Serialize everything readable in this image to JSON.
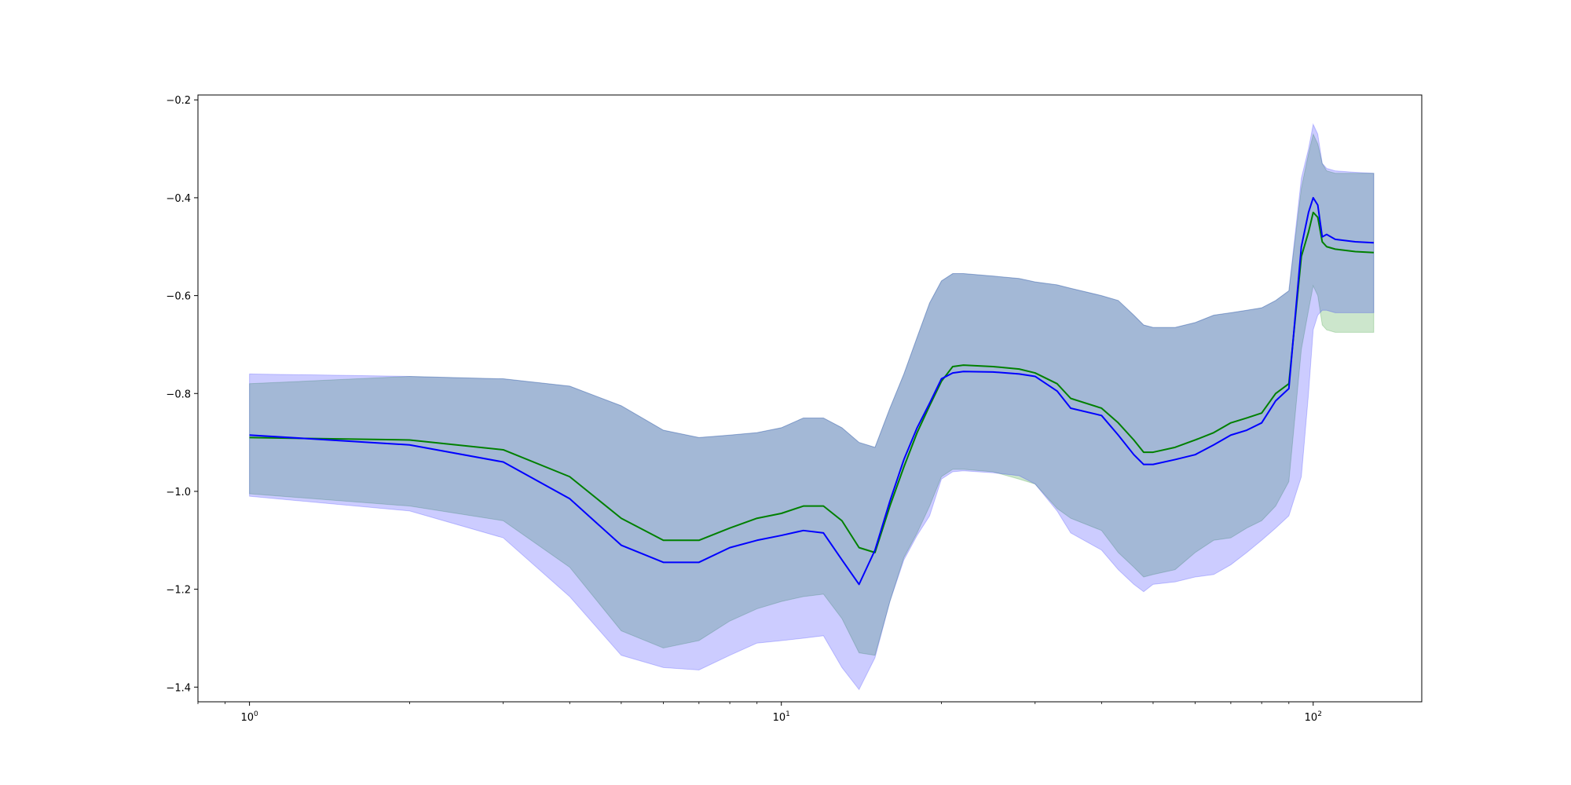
{
  "chart_data": {
    "type": "line",
    "title": "",
    "xlabel": "",
    "ylabel": "",
    "xscale": "log",
    "xlim": [
      0.8,
      160
    ],
    "ylim": [
      -1.43,
      -0.19
    ],
    "grid": false,
    "legend": "none",
    "x_ticks": [
      {
        "value": 1,
        "base": "10",
        "exp": "0"
      },
      {
        "value": 10,
        "base": "10",
        "exp": "1"
      },
      {
        "value": 100,
        "base": "10",
        "exp": "2"
      }
    ],
    "y_ticks": [
      {
        "value": -0.2,
        "label": "−0.2"
      },
      {
        "value": -0.4,
        "label": "−0.4"
      },
      {
        "value": -0.6,
        "label": "−0.6"
      },
      {
        "value": -0.8,
        "label": "−0.8"
      },
      {
        "value": -1.0,
        "label": "−1.0"
      },
      {
        "value": -1.2,
        "label": "−1.2"
      },
      {
        "value": -1.4,
        "label": "−1.4"
      }
    ],
    "series": [
      {
        "color": "#008000",
        "band_color": "#008000",
        "band_opacity": 0.2,
        "x": [
          1,
          2,
          3,
          4,
          5,
          6,
          7,
          8,
          9,
          10,
          11,
          12,
          13,
          14,
          15,
          16,
          17,
          18,
          19,
          20,
          21,
          22,
          25,
          28,
          30,
          33,
          35,
          40,
          43,
          46,
          48,
          50,
          55,
          60,
          65,
          70,
          75,
          80,
          85,
          90,
          95,
          98,
          100,
          102,
          104,
          106,
          110,
          120,
          130
        ],
        "mean": [
          -0.89,
          -0.895,
          -0.915,
          -0.97,
          -1.055,
          -1.1,
          -1.1,
          -1.075,
          -1.055,
          -1.045,
          -1.03,
          -1.03,
          -1.06,
          -1.115,
          -1.125,
          -1.03,
          -0.95,
          -0.88,
          -0.825,
          -0.775,
          -0.745,
          -0.742,
          -0.745,
          -0.75,
          -0.758,
          -0.78,
          -0.81,
          -0.83,
          -0.86,
          -0.895,
          -0.92,
          -0.92,
          -0.91,
          -0.895,
          -0.88,
          -0.86,
          -0.85,
          -0.84,
          -0.8,
          -0.78,
          -0.52,
          -0.47,
          -0.43,
          -0.44,
          -0.49,
          -0.5,
          -0.505,
          -0.51,
          -0.512
        ],
        "upper": [
          -0.78,
          -0.765,
          -0.77,
          -0.785,
          -0.825,
          -0.875,
          -0.89,
          -0.885,
          -0.88,
          -0.87,
          -0.85,
          -0.85,
          -0.87,
          -0.9,
          -0.91,
          -0.83,
          -0.76,
          -0.685,
          -0.615,
          -0.57,
          -0.555,
          -0.555,
          -0.56,
          -0.565,
          -0.572,
          -0.578,
          -0.585,
          -0.6,
          -0.61,
          -0.64,
          -0.66,
          -0.665,
          -0.665,
          -0.655,
          -0.64,
          -0.635,
          -0.63,
          -0.625,
          -0.61,
          -0.59,
          -0.38,
          -0.31,
          -0.27,
          -0.29,
          -0.33,
          -0.345,
          -0.35,
          -0.35,
          -0.35
        ],
        "lower": [
          -1.005,
          -1.03,
          -1.06,
          -1.155,
          -1.285,
          -1.32,
          -1.305,
          -1.265,
          -1.24,
          -1.225,
          -1.215,
          -1.21,
          -1.26,
          -1.33,
          -1.335,
          -1.225,
          -1.135,
          -1.085,
          -1.03,
          -0.97,
          -0.955,
          -0.955,
          -0.96,
          -0.975,
          -0.985,
          -1.035,
          -1.055,
          -1.08,
          -1.125,
          -1.155,
          -1.175,
          -1.17,
          -1.16,
          -1.125,
          -1.1,
          -1.095,
          -1.075,
          -1.06,
          -1.03,
          -0.98,
          -0.71,
          -0.63,
          -0.58,
          -0.6,
          -0.66,
          -0.67,
          -0.675,
          -0.675,
          -0.675
        ]
      },
      {
        "color": "#0000ff",
        "band_color": "#0000ff",
        "band_opacity": 0.2,
        "x": [
          1,
          2,
          3,
          4,
          5,
          6,
          7,
          8,
          9,
          10,
          11,
          12,
          13,
          14,
          15,
          16,
          17,
          18,
          19,
          20,
          21,
          22,
          25,
          28,
          30,
          33,
          35,
          40,
          43,
          46,
          48,
          50,
          55,
          60,
          65,
          70,
          75,
          80,
          85,
          90,
          95,
          98,
          100,
          102,
          104,
          106,
          110,
          120,
          130
        ],
        "mean": [
          -0.885,
          -0.905,
          -0.94,
          -1.015,
          -1.11,
          -1.145,
          -1.145,
          -1.115,
          -1.1,
          -1.09,
          -1.08,
          -1.085,
          -1.14,
          -1.19,
          -1.12,
          -1.02,
          -0.935,
          -0.87,
          -0.82,
          -0.77,
          -0.758,
          -0.755,
          -0.756,
          -0.76,
          -0.765,
          -0.795,
          -0.83,
          -0.845,
          -0.885,
          -0.925,
          -0.945,
          -0.945,
          -0.935,
          -0.925,
          -0.905,
          -0.885,
          -0.875,
          -0.86,
          -0.815,
          -0.79,
          -0.5,
          -0.43,
          -0.4,
          -0.415,
          -0.48,
          -0.475,
          -0.485,
          -0.49,
          -0.492
        ],
        "upper": [
          -0.76,
          -0.765,
          -0.77,
          -0.785,
          -0.825,
          -0.875,
          -0.89,
          -0.885,
          -0.88,
          -0.87,
          -0.85,
          -0.85,
          -0.87,
          -0.9,
          -0.91,
          -0.83,
          -0.76,
          -0.685,
          -0.615,
          -0.57,
          -0.555,
          -0.555,
          -0.56,
          -0.565,
          -0.572,
          -0.578,
          -0.585,
          -0.6,
          -0.61,
          -0.64,
          -0.66,
          -0.665,
          -0.665,
          -0.655,
          -0.64,
          -0.635,
          -0.63,
          -0.625,
          -0.61,
          -0.59,
          -0.36,
          -0.3,
          -0.25,
          -0.27,
          -0.33,
          -0.34,
          -0.345,
          -0.348,
          -0.35
        ],
        "lower": [
          -1.01,
          -1.04,
          -1.095,
          -1.215,
          -1.335,
          -1.36,
          -1.365,
          -1.335,
          -1.31,
          -1.305,
          -1.3,
          -1.295,
          -1.36,
          -1.405,
          -1.34,
          -1.225,
          -1.14,
          -1.09,
          -1.05,
          -0.975,
          -0.96,
          -0.958,
          -0.962,
          -0.968,
          -0.985,
          -1.04,
          -1.085,
          -1.12,
          -1.16,
          -1.19,
          -1.205,
          -1.19,
          -1.185,
          -1.175,
          -1.17,
          -1.15,
          -1.125,
          -1.1,
          -1.075,
          -1.05,
          -0.97,
          -0.8,
          -0.67,
          -0.64,
          -0.63,
          -0.63,
          -0.635,
          -0.635,
          -0.635
        ]
      }
    ]
  }
}
